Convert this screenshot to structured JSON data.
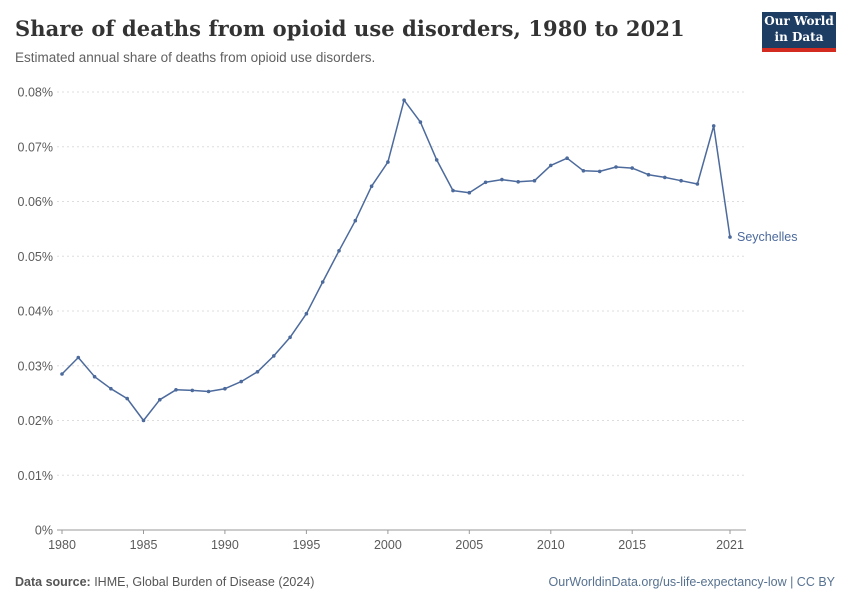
{
  "header": {
    "title": "Share of deaths from opioid use disorders, 1980 to 2021",
    "subtitle": "Estimated annual share of deaths from opioid use disorders."
  },
  "logo": {
    "line1": "Our World",
    "line2": "in Data",
    "bg_color": "#1d3d63",
    "accent_color": "#d42b21"
  },
  "chart_data": {
    "type": "line",
    "title": "Share of deaths from opioid use disorders, 1980 to 2021",
    "xlabel": "",
    "ylabel": "",
    "unit": "%",
    "grid": "horizontal-dashed",
    "legend_position": "end-of-line-label",
    "xlim": [
      1980,
      2021
    ],
    "ylim": [
      0,
      0.08
    ],
    "x": [
      1980,
      1981,
      1982,
      1983,
      1984,
      1985,
      1986,
      1987,
      1988,
      1989,
      1990,
      1991,
      1992,
      1993,
      1994,
      1995,
      1996,
      1997,
      1998,
      1999,
      2000,
      2001,
      2002,
      2003,
      2004,
      2005,
      2006,
      2007,
      2008,
      2009,
      2010,
      2011,
      2012,
      2013,
      2014,
      2015,
      2016,
      2017,
      2018,
      2019,
      2020,
      2021
    ],
    "series": [
      {
        "name": "Seychelles",
        "values": [
          0.0285,
          0.0315,
          0.028,
          0.0258,
          0.024,
          0.02,
          0.0238,
          0.0256,
          0.0255,
          0.0253,
          0.0258,
          0.0271,
          0.0289,
          0.0318,
          0.0352,
          0.0395,
          0.0453,
          0.051,
          0.0565,
          0.0628,
          0.0672,
          0.0785,
          0.0745,
          0.0676,
          0.062,
          0.0616,
          0.0635,
          0.064,
          0.0636,
          0.0638,
          0.0666,
          0.0679,
          0.0656,
          0.0655,
          0.0663,
          0.0661,
          0.0649,
          0.0644,
          0.0638,
          0.0632,
          0.0738,
          0.0535
        ]
      }
    ],
    "yticks": [
      {
        "value": 0,
        "label": "0%"
      },
      {
        "value": 0.01,
        "label": "0.01%"
      },
      {
        "value": 0.02,
        "label": "0.02%"
      },
      {
        "value": 0.03,
        "label": "0.03%"
      },
      {
        "value": 0.04,
        "label": "0.04%"
      },
      {
        "value": 0.05,
        "label": "0.05%"
      },
      {
        "value": 0.06,
        "label": "0.06%"
      },
      {
        "value": 0.07,
        "label": "0.07%"
      },
      {
        "value": 0.08,
        "label": "0.08%"
      }
    ],
    "xticks": [
      {
        "value": 1980,
        "label": "1980"
      },
      {
        "value": 1985,
        "label": "1985"
      },
      {
        "value": 1990,
        "label": "1990"
      },
      {
        "value": 1995,
        "label": "1995"
      },
      {
        "value": 2000,
        "label": "2000"
      },
      {
        "value": 2005,
        "label": "2005"
      },
      {
        "value": 2010,
        "label": "2010"
      },
      {
        "value": 2015,
        "label": "2015"
      },
      {
        "value": 2021,
        "label": "2021"
      }
    ],
    "line_color": "#4c6a9c"
  },
  "footer": {
    "datasource_label": "Data source:",
    "datasource_value": " IHME, Global Burden of Disease (2024)",
    "link_text": "OurWorldinData.org/us-life-expectancy-low | CC BY"
  },
  "colors": {
    "title_text": "#333333",
    "subtitle_text": "#616161",
    "tick_text": "#5b5b5b",
    "grid": "#dddddd",
    "axis": "#999999",
    "footer_left_text": "#555555",
    "footer_link_text": "#577291"
  }
}
